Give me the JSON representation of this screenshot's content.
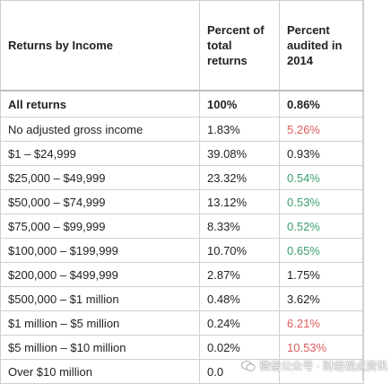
{
  "table": {
    "headers": [
      "Returns by Income",
      "Percent of total returns",
      "Percent audited in 2014"
    ],
    "total": {
      "label": "All returns",
      "percent_total": "100%",
      "percent_audited": "0.86%"
    },
    "rows": [
      {
        "label": "No adjusted gross income",
        "percent_total": "1.83%",
        "percent_audited": "5.26%",
        "audit_color": "red"
      },
      {
        "label": "$1 – $24,999",
        "percent_total": "39.08%",
        "percent_audited": "0.93%",
        "audit_color": "plain"
      },
      {
        "label": "$25,000 – $49,999",
        "percent_total": "23.32%",
        "percent_audited": "0.54%",
        "audit_color": "green"
      },
      {
        "label": "$50,000 – $74,999",
        "percent_total": "13.12%",
        "percent_audited": "0.53%",
        "audit_color": "green"
      },
      {
        "label": "$75,000 – $99,999",
        "percent_total": "8.33%",
        "percent_audited": "0.52%",
        "audit_color": "green"
      },
      {
        "label": "$100,000 – $199,999",
        "percent_total": "10.70%",
        "percent_audited": "0.65%",
        "audit_color": "green"
      },
      {
        "label": "$200,000 – $499,999",
        "percent_total": "2.87%",
        "percent_audited": "1.75%",
        "audit_color": "plain"
      },
      {
        "label": "$500,000 – $1 million",
        "percent_total": "0.48%",
        "percent_audited": "3.62%",
        "audit_color": "plain"
      },
      {
        "label": "$1 million – $5 million",
        "percent_total": "0.24%",
        "percent_audited": "6.21%",
        "audit_color": "red"
      },
      {
        "label": "$5 million – $10 million",
        "percent_total": "0.02%",
        "percent_audited": "10.53%",
        "audit_color": "red"
      },
      {
        "label": "Over $10 million",
        "percent_total": "0.0",
        "percent_audited": "",
        "audit_color": "red"
      }
    ]
  },
  "watermark": {
    "text": "微信公众号 · 财经视点资讯",
    "icon": "wechat-icon"
  },
  "colors": {
    "red": "#e05a5a",
    "green": "#3aa06e",
    "border": "#cfcfcf"
  }
}
